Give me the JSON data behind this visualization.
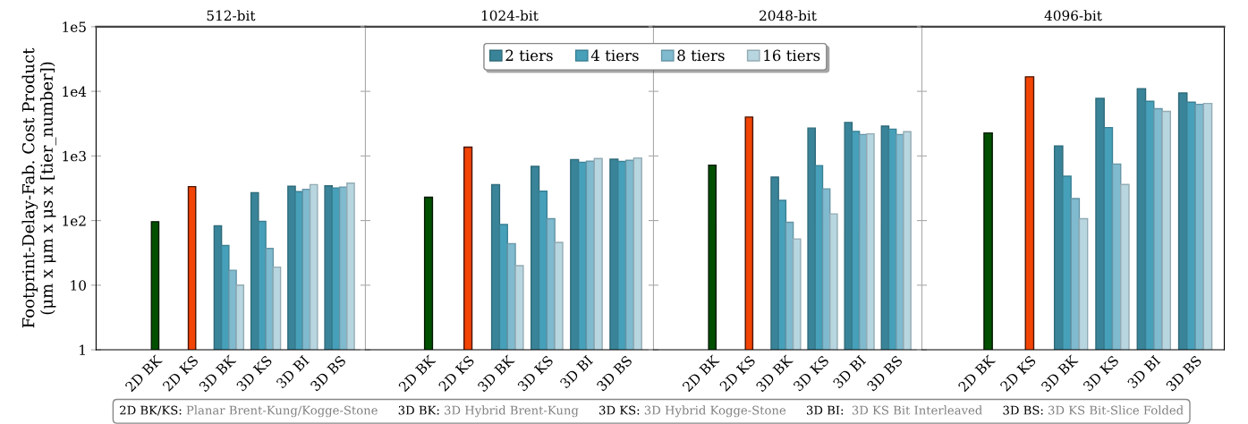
{
  "chart_data": [
    {
      "type": "bar",
      "title": "512-bit",
      "ylabel": "Footprint-Delay-Fab. Cost Product\n(μm x μm x μs x [tier_number])",
      "log": "y",
      "ylim": [
        1,
        100000
      ],
      "yticks": [
        1,
        10,
        {
          "value": 100,
          "label": "1e2"
        },
        {
          "value": 1000,
          "label": "1e3"
        },
        {
          "value": 10000,
          "label": "1e4"
        },
        {
          "value": 100000,
          "label": "1e5"
        }
      ],
      "grid": false,
      "legend": "top right",
      "categories": [
        "2D BK",
        "2D KS",
        "3D BK",
        "3D KS",
        "3D BI",
        "3D BS"
      ],
      "series": [
        {
          "color": "#005000",
          "values": [
            96,
            null,
            null,
            null,
            null,
            null
          ]
        },
        {
          "color": "#f24405",
          "values": [
            null,
            335,
            null,
            null,
            null,
            null
          ]
        },
        {
          "name": "2 tiers",
          "color": "#3a8499",
          "values": [
            null,
            null,
            83,
            270,
            340,
            345
          ]
        },
        {
          "name": "4 tiers",
          "color": "#47a0b9",
          "values": [
            null,
            null,
            41,
            97,
            280,
            320
          ]
        },
        {
          "name": "8 tiers",
          "color": "#7fbacf",
          "values": [
            null,
            null,
            17,
            37,
            305,
            330
          ]
        },
        {
          "name": "16 tiers",
          "color": "#b8d6e0",
          "values": [
            null,
            null,
            10,
            19,
            360,
            380
          ]
        }
      ],
      "annotations": [
        "2D BK/KS: Planar Brent-Kung/Kogge-Stone",
        "3D BK: 3D Hybrid Brent-Kung",
        "3D KS: 3D Hybrid Kogge-Stone",
        "3D BI:  3D KS Bit Interleaved",
        "3D BS: 3D KS Bit-Slice Folded"
      ]
    },
    {
      "type": "bar",
      "title": "1024-bit",
      "log": "y",
      "ylim": [
        1,
        100000
      ],
      "tick_labels": "x",
      "grid": false,
      "categories": [
        "2D BK",
        "2D KS",
        "3D BK",
        "3D KS",
        "3D BI",
        "3D BS"
      ],
      "series": [
        {
          "color": "#005000",
          "values": [
            230,
            null,
            null,
            null,
            null,
            null
          ]
        },
        {
          "color": "#f24405",
          "values": [
            null,
            1370,
            null,
            null,
            null,
            null
          ]
        },
        {
          "color": "#3a8499",
          "values": [
            null,
            null,
            360,
            690,
            880,
            890
          ]
        },
        {
          "color": "#47a0b9",
          "values": [
            null,
            null,
            87,
            285,
            800,
            820
          ]
        },
        {
          "color": "#7fbacf",
          "values": [
            null,
            null,
            44,
            107,
            830,
            855
          ]
        },
        {
          "color": "#b8d6e0",
          "values": [
            null,
            null,
            20,
            46,
            910,
            930
          ]
        }
      ]
    },
    {
      "type": "bar",
      "title": "2048-bit",
      "log": "y",
      "ylim": [
        1,
        100000
      ],
      "tick_labels": "x",
      "grid": false,
      "categories": [
        "2D BK",
        "2D KS",
        "3D BK",
        "3D KS",
        "3D BI",
        "3D BS"
      ],
      "series": [
        {
          "color": "#005000",
          "values": [
            720,
            null,
            null,
            null,
            null,
            null
          ]
        },
        {
          "color": "#f24405",
          "values": [
            null,
            4000,
            null,
            null,
            null,
            null
          ]
        },
        {
          "color": "#3a8499",
          "values": [
            null,
            null,
            470,
            2700,
            3300,
            2900
          ]
        },
        {
          "color": "#47a0b9",
          "values": [
            null,
            null,
            205,
            710,
            2400,
            2600
          ]
        },
        {
          "color": "#7fbacf",
          "values": [
            null,
            null,
            94,
            310,
            2150,
            2150
          ]
        },
        {
          "color": "#b8d6e0",
          "values": [
            null,
            null,
            52,
            127,
            2200,
            2370
          ]
        }
      ]
    },
    {
      "type": "bar",
      "title": "4096-bit",
      "log": "y",
      "ylim": [
        1,
        100000
      ],
      "tick_labels": "x",
      "grid": false,
      "categories": [
        "2D BK",
        "2D KS",
        "3D BK",
        "3D KS",
        "3D BI",
        "3D BS"
      ],
      "series": [
        {
          "color": "#005000",
          "values": [
            2270,
            null,
            null,
            null,
            null,
            null
          ]
        },
        {
          "color": "#f24405",
          "values": [
            null,
            16800,
            null,
            null,
            null,
            null
          ]
        },
        {
          "color": "#3a8499",
          "values": [
            null,
            null,
            1430,
            7800,
            11000,
            9400
          ]
        },
        {
          "color": "#47a0b9",
          "values": [
            null,
            null,
            486,
            2750,
            7000,
            6800
          ]
        },
        {
          "color": "#7fbacf",
          "values": [
            null,
            null,
            219,
            750,
            5400,
            6300
          ]
        },
        {
          "color": "#b8d6e0",
          "values": [
            null,
            null,
            107,
            361,
            4900,
            6500
          ]
        }
      ]
    }
  ]
}
